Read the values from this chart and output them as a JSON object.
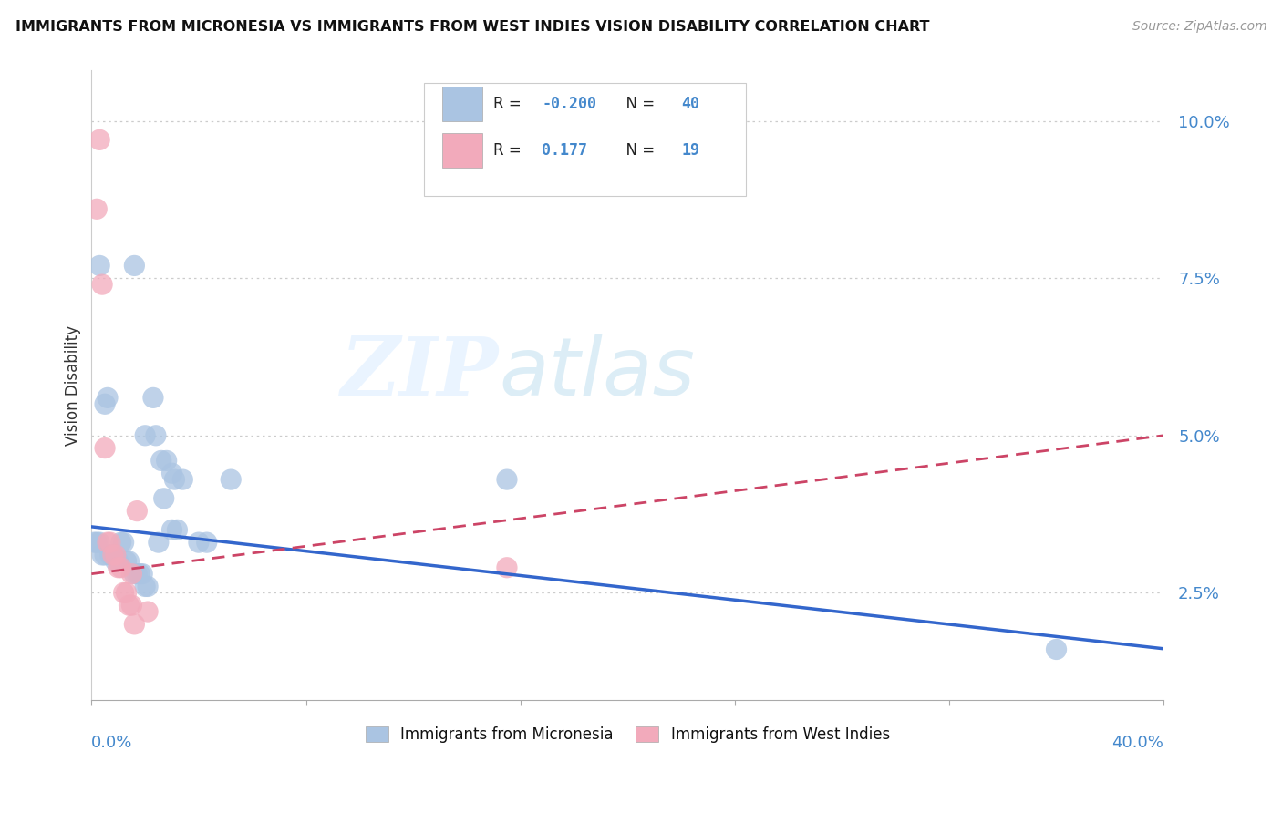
{
  "title": "IMMIGRANTS FROM MICRONESIA VS IMMIGRANTS FROM WEST INDIES VISION DISABILITY CORRELATION CHART",
  "source": "Source: ZipAtlas.com",
  "ylabel": "Vision Disability",
  "xlim": [
    0.0,
    0.4
  ],
  "ylim": [
    0.008,
    0.108
  ],
  "yticks": [
    0.025,
    0.05,
    0.075,
    0.1
  ],
  "blue_R": "-0.200",
  "blue_N": "40",
  "pink_R": "0.177",
  "pink_N": "19",
  "blue_color": "#aac4e2",
  "pink_color": "#f2aabb",
  "blue_line_color": "#3366cc",
  "pink_line_color": "#cc4466",
  "watermark_zip": "ZIP",
  "watermark_atlas": "atlas",
  "blue_intercept": 0.0355,
  "blue_slope": -0.0485,
  "pink_intercept": 0.028,
  "pink_slope": 0.055,
  "blue_points": [
    [
      0.001,
      0.033
    ],
    [
      0.002,
      0.033
    ],
    [
      0.003,
      0.033
    ],
    [
      0.004,
      0.031
    ],
    [
      0.005,
      0.031
    ],
    [
      0.007,
      0.031
    ],
    [
      0.008,
      0.031
    ],
    [
      0.009,
      0.03
    ],
    [
      0.01,
      0.03
    ],
    [
      0.011,
      0.033
    ],
    [
      0.012,
      0.033
    ],
    [
      0.013,
      0.03
    ],
    [
      0.014,
      0.03
    ],
    [
      0.016,
      0.028
    ],
    [
      0.017,
      0.028
    ],
    [
      0.018,
      0.028
    ],
    [
      0.019,
      0.028
    ],
    [
      0.02,
      0.026
    ],
    [
      0.021,
      0.026
    ],
    [
      0.025,
      0.033
    ],
    [
      0.027,
      0.04
    ],
    [
      0.03,
      0.035
    ],
    [
      0.032,
      0.035
    ],
    [
      0.04,
      0.033
    ],
    [
      0.043,
      0.033
    ],
    [
      0.003,
      0.077
    ],
    [
      0.016,
      0.077
    ],
    [
      0.02,
      0.05
    ],
    [
      0.024,
      0.05
    ],
    [
      0.026,
      0.046
    ],
    [
      0.028,
      0.046
    ],
    [
      0.031,
      0.043
    ],
    [
      0.034,
      0.043
    ],
    [
      0.052,
      0.043
    ],
    [
      0.006,
      0.056
    ],
    [
      0.023,
      0.056
    ],
    [
      0.155,
      0.043
    ],
    [
      0.36,
      0.016
    ],
    [
      0.005,
      0.055
    ],
    [
      0.03,
      0.044
    ]
  ],
  "pink_points": [
    [
      0.003,
      0.097
    ],
    [
      0.002,
      0.086
    ],
    [
      0.004,
      0.074
    ],
    [
      0.005,
      0.048
    ],
    [
      0.006,
      0.033
    ],
    [
      0.007,
      0.033
    ],
    [
      0.008,
      0.031
    ],
    [
      0.009,
      0.031
    ],
    [
      0.01,
      0.029
    ],
    [
      0.011,
      0.029
    ],
    [
      0.012,
      0.025
    ],
    [
      0.013,
      0.025
    ],
    [
      0.014,
      0.023
    ],
    [
      0.015,
      0.023
    ],
    [
      0.016,
      0.02
    ],
    [
      0.015,
      0.028
    ],
    [
      0.017,
      0.038
    ],
    [
      0.155,
      0.029
    ],
    [
      0.021,
      0.022
    ]
  ]
}
